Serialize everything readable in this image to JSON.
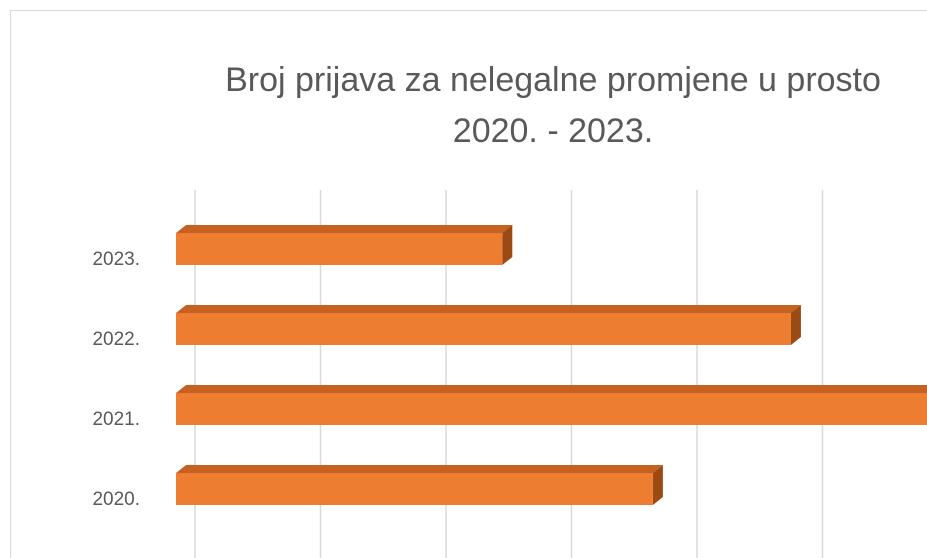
{
  "chart_data": {
    "type": "bar",
    "orientation": "horizontal",
    "title": [
      "Broj prijava za nelegalne promjene u prosto",
      "2020. - 2023."
    ],
    "categories": [
      "2020.",
      "2021.",
      "2022.",
      "2023."
    ],
    "values": [
      3.8,
      6.3,
      4.9,
      2.6
    ],
    "color": "#ed7d31",
    "xlim": [
      0,
      6
    ],
    "xticks": [
      0,
      1,
      2,
      3,
      4,
      5
    ],
    "grid": true
  }
}
